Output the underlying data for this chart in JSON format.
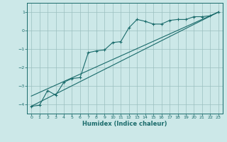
{
  "xlabel": "Humidex (Indice chaleur)",
  "ylabel": "",
  "bg_color": "#cce8e8",
  "line_color": "#1a6b6b",
  "grid_color": "#9bbfbf",
  "xlim": [
    -0.5,
    23.5
  ],
  "ylim": [
    -4.5,
    1.5
  ],
  "xticks": [
    0,
    1,
    2,
    3,
    4,
    5,
    6,
    7,
    8,
    9,
    10,
    11,
    12,
    13,
    14,
    15,
    16,
    17,
    18,
    19,
    20,
    21,
    22,
    23
  ],
  "yticks": [
    -4,
    -3,
    -2,
    -1,
    0,
    1
  ],
  "line1_x": [
    0,
    1,
    2,
    3,
    4,
    5,
    6,
    7,
    8,
    9,
    10,
    11,
    12,
    13,
    14,
    15,
    16,
    17,
    18,
    19,
    20,
    21,
    22,
    23
  ],
  "line1_y": [
    -4.1,
    -4.05,
    -3.25,
    -3.5,
    -2.8,
    -2.6,
    -2.55,
    -1.2,
    -1.1,
    -1.05,
    -0.65,
    -0.6,
    0.15,
    0.6,
    0.5,
    0.35,
    0.35,
    0.55,
    0.6,
    0.6,
    0.75,
    0.75,
    0.8,
    1.0
  ],
  "line2_x": [
    0,
    23
  ],
  "line2_y": [
    -4.1,
    1.0
  ],
  "line3_x": [
    0,
    23
  ],
  "line3_y": [
    -3.55,
    1.0
  ]
}
